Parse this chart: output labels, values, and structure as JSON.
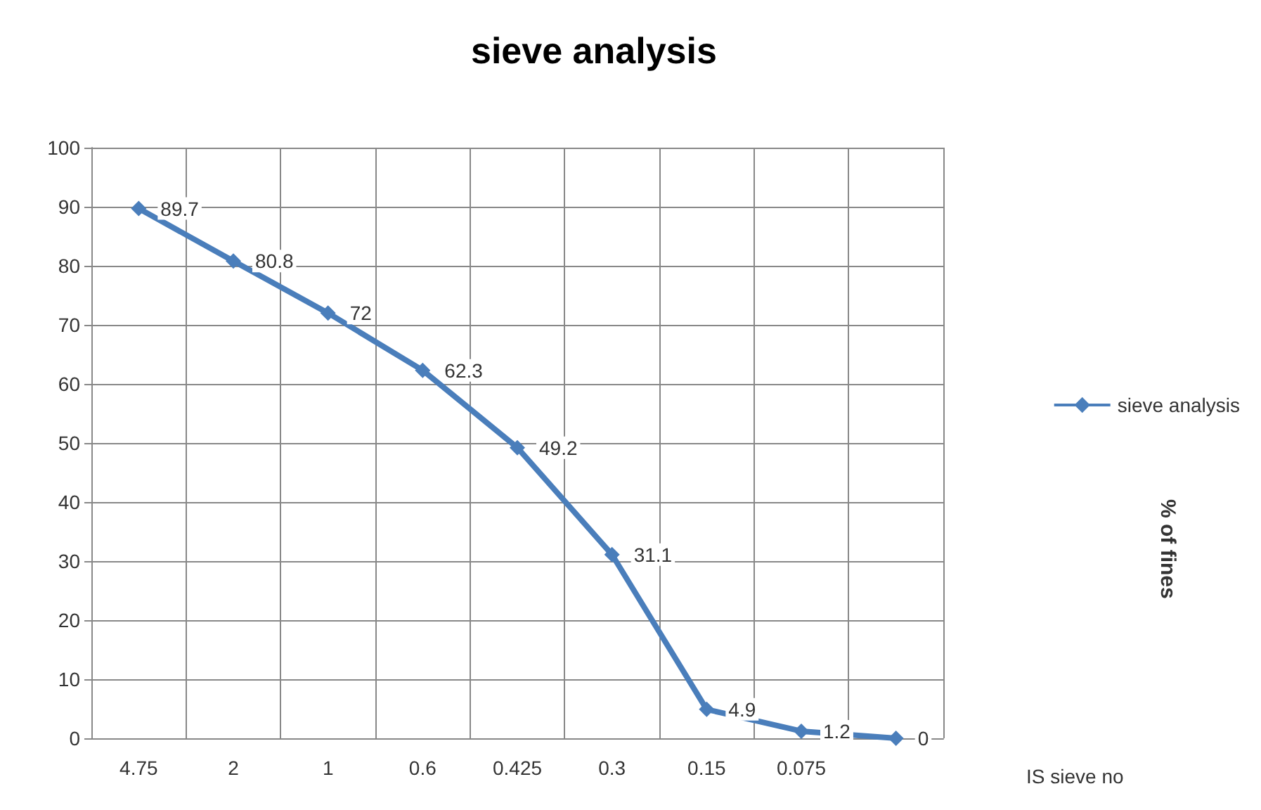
{
  "chart_data": {
    "type": "line",
    "title": "sieve analysis",
    "xlabel": "IS sieve no",
    "annotations": [
      "% of fines"
    ],
    "categories": [
      "4.75",
      "2",
      "1",
      "0.6",
      "0.425",
      "0.3",
      "0.15",
      "0.075",
      null
    ],
    "series": [
      {
        "name": "sieve analysis",
        "color": "#4a7ebb",
        "values": [
          89.7,
          80.8,
          72,
          62.3,
          49.2,
          31.1,
          4.9,
          1.2,
          0
        ]
      }
    ],
    "ylim": [
      0,
      100
    ],
    "yticks": [
      0,
      10,
      20,
      30,
      40,
      50,
      60,
      70,
      80,
      90,
      100
    ],
    "grid": true,
    "legend": "right",
    "marker": "diamond",
    "line_style": "solid",
    "data_labels": true
  }
}
